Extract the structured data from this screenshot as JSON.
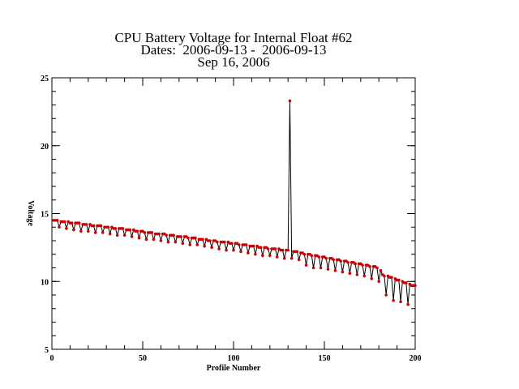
{
  "chart_data": {
    "type": "line",
    "title": [
      "CPU Battery Voltage for Internal Float #62",
      "Dates:  2006-09-13 -  2006-09-13",
      "Sep 16, 2006"
    ],
    "x_label": "Profile Number",
    "y_label": "Voltage",
    "x": [
      1,
      2,
      3,
      4,
      5,
      6,
      7,
      8,
      9,
      10,
      11,
      12,
      13,
      14,
      15,
      16,
      17,
      18,
      19,
      20,
      21,
      22,
      23,
      24,
      25,
      26,
      27,
      28,
      29,
      30,
      31,
      32,
      33,
      34,
      35,
      36,
      37,
      38,
      39,
      40,
      41,
      42,
      43,
      44,
      45,
      46,
      47,
      48,
      49,
      50,
      51,
      52,
      53,
      54,
      55,
      56,
      57,
      58,
      59,
      60,
      61,
      62,
      63,
      64,
      65,
      66,
      67,
      68,
      69,
      70,
      71,
      72,
      73,
      74,
      75,
      76,
      77,
      78,
      79,
      80,
      81,
      82,
      83,
      84,
      85,
      86,
      87,
      88,
      89,
      90,
      91,
      92,
      93,
      94,
      95,
      96,
      97,
      98,
      99,
      100,
      101,
      102,
      103,
      104,
      105,
      106,
      107,
      108,
      109,
      110,
      111,
      112,
      113,
      114,
      115,
      116,
      117,
      118,
      119,
      120,
      121,
      122,
      123,
      124,
      125,
      126,
      127,
      128,
      129,
      130,
      131,
      132,
      133,
      134,
      135,
      136,
      137,
      138,
      139,
      140,
      141,
      142,
      143,
      144,
      145,
      146,
      147,
      148,
      149,
      150,
      151,
      152,
      153,
      154,
      155,
      156,
      157,
      158,
      159,
      160,
      161,
      162,
      163,
      164,
      165,
      166,
      167,
      168,
      169,
      170,
      171,
      172,
      173,
      174,
      175,
      176,
      177,
      178,
      179,
      180,
      181,
      182,
      183,
      184,
      185,
      186,
      187,
      188,
      189,
      190,
      191,
      192,
      193,
      194,
      195,
      196,
      197,
      198,
      199,
      200
    ],
    "values": [
      14.5,
      14.5,
      14.5,
      14.0,
      14.4,
      14.4,
      14.4,
      13.9,
      14.4,
      14.3,
      14.3,
      13.8,
      14.3,
      14.3,
      14.3,
      13.7,
      14.2,
      14.2,
      14.2,
      13.7,
      14.2,
      14.1,
      14.1,
      13.6,
      14.1,
      14.1,
      14.1,
      13.6,
      14.0,
      14.0,
      14.0,
      13.5,
      14.0,
      13.9,
      13.9,
      13.4,
      13.9,
      13.9,
      13.9,
      13.4,
      13.8,
      13.8,
      13.8,
      13.3,
      13.8,
      13.7,
      13.7,
      13.2,
      13.7,
      13.7,
      13.6,
      13.1,
      13.6,
      13.6,
      13.6,
      13.1,
      13.5,
      13.5,
      13.5,
      13.0,
      13.5,
      13.5,
      13.4,
      12.9,
      13.4,
      13.4,
      13.4,
      12.9,
      13.3,
      13.3,
      13.3,
      12.8,
      13.3,
      13.3,
      13.2,
      12.7,
      13.2,
      13.2,
      13.2,
      12.7,
      13.1,
      13.1,
      13.1,
      12.6,
      13.1,
      13.0,
      13.0,
      12.5,
      13.0,
      13.0,
      12.9,
      12.4,
      12.9,
      12.9,
      12.9,
      12.3,
      12.9,
      12.8,
      12.8,
      12.3,
      12.8,
      12.8,
      12.7,
      12.2,
      12.7,
      12.7,
      12.7,
      12.1,
      12.6,
      12.6,
      12.6,
      12.0,
      12.6,
      12.5,
      12.5,
      11.9,
      12.5,
      12.5,
      12.4,
      11.9,
      12.4,
      12.4,
      12.4,
      11.8,
      12.4,
      12.3,
      12.3,
      11.7,
      12.3,
      12.3,
      23.3,
      11.7,
      12.2,
      12.2,
      12.2,
      11.6,
      12.1,
      12.1,
      12.0,
      11.2,
      12.0,
      12.0,
      11.9,
      11.0,
      11.9,
      11.9,
      11.8,
      11.0,
      11.8,
      11.8,
      11.7,
      10.9,
      11.7,
      11.7,
      11.6,
      10.8,
      11.6,
      11.6,
      11.5,
      10.7,
      11.5,
      11.5,
      11.4,
      10.6,
      11.4,
      11.4,
      11.3,
      10.5,
      11.3,
      11.3,
      11.2,
      10.4,
      11.2,
      11.2,
      11.1,
      10.2,
      11.1,
      11.1,
      11.0,
      10.0,
      10.8,
      10.5,
      10.4,
      9.0,
      10.4,
      10.3,
      10.3,
      8.6,
      10.2,
      10.1,
      10.1,
      8.5,
      10.0,
      9.9,
      9.9,
      8.3,
      9.8,
      9.7,
      9.7,
      9.7
    ],
    "line_color": "#000000",
    "marker_color": "#cc0000",
    "xlim": [
      0,
      200
    ],
    "xticks": [
      0,
      50,
      100,
      150,
      200
    ],
    "ylim": [
      5,
      25
    ],
    "yticks": [
      5,
      10,
      15,
      20,
      25
    ]
  }
}
